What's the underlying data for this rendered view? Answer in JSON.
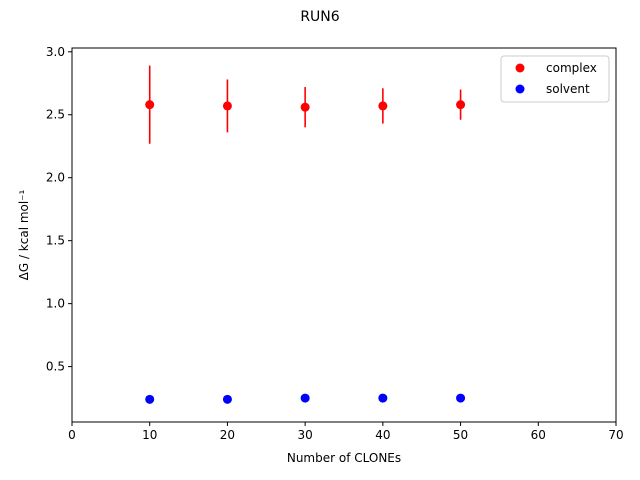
{
  "chart_data": {
    "type": "scatter",
    "title": "RUN6",
    "xlabel": "Number of CLONEs",
    "ylabel": "ΔG / kcal mol⁻¹",
    "xlim": [
      0,
      70
    ],
    "ylim": [
      0.06,
      3.03
    ],
    "xticks": [
      0,
      10,
      20,
      30,
      40,
      50,
      60,
      70
    ],
    "yticks": [
      0.5,
      1.0,
      1.5,
      2.0,
      2.5,
      3.0
    ],
    "xtick_labels": [
      "0",
      "10",
      "20",
      "30",
      "40",
      "50",
      "60",
      "70"
    ],
    "ytick_labels": [
      "0.5",
      "1.0",
      "1.5",
      "2.0",
      "2.5",
      "3.0"
    ],
    "grid": false,
    "legend_position": "top-right",
    "series": [
      {
        "name": "complex",
        "color": "#ff0000",
        "x": [
          10,
          20,
          30,
          40,
          50
        ],
        "y": [
          2.58,
          2.57,
          2.56,
          2.57,
          2.58
        ],
        "err": [
          0.31,
          0.21,
          0.16,
          0.14,
          0.12
        ]
      },
      {
        "name": "solvent",
        "color": "#0000ff",
        "x": [
          10,
          20,
          30,
          40,
          50
        ],
        "y": [
          0.24,
          0.24,
          0.25,
          0.25,
          0.25
        ],
        "err": [
          0.01,
          0.01,
          0.01,
          0.01,
          0.01
        ]
      }
    ]
  }
}
